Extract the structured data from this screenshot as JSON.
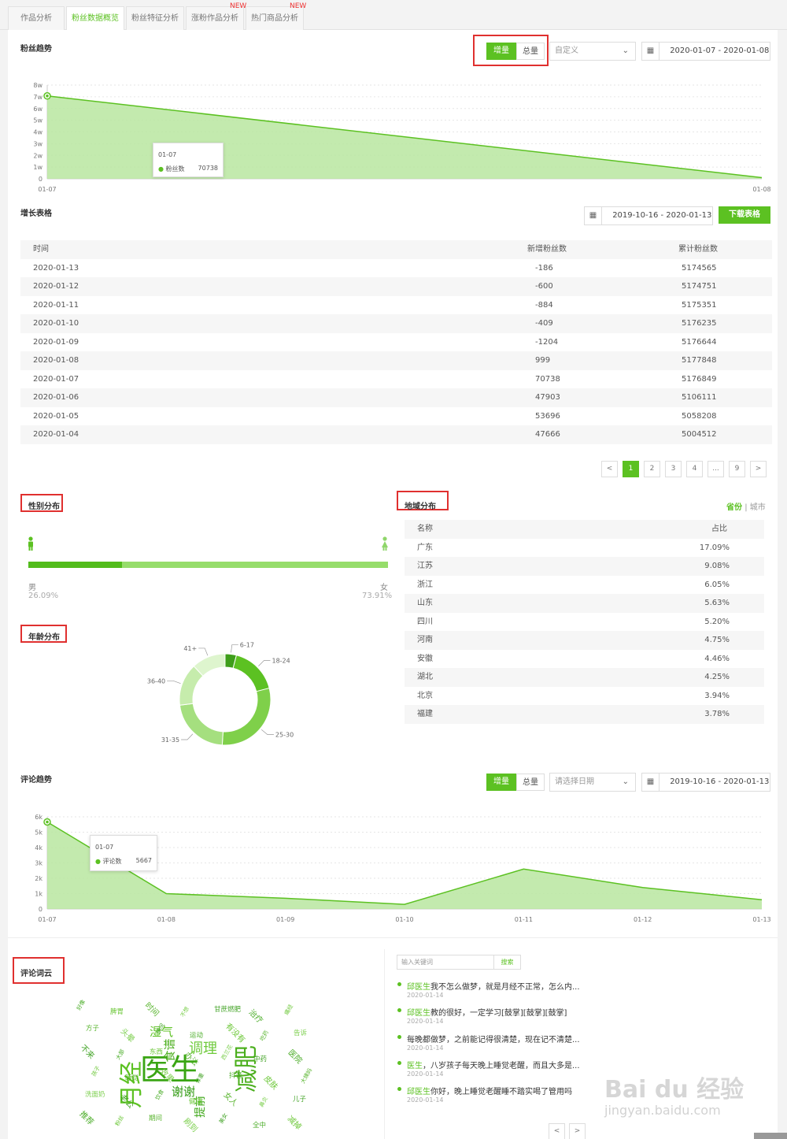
{
  "tabs": [
    {
      "label": "作品分析",
      "active": false
    },
    {
      "label": "粉丝数据概览",
      "active": true
    },
    {
      "label": "粉丝特征分析",
      "active": false
    },
    {
      "label": "涨粉作品分析",
      "active": false,
      "badge": "NEW"
    },
    {
      "label": "热门商品分析",
      "active": false,
      "badge": "NEW"
    }
  ],
  "fans_trend": {
    "title": "粉丝趋势",
    "seg_on": "增量",
    "seg_off": "总量",
    "select": "自定义",
    "date_range": "2020-01-07 - 2020-01-08",
    "tooltip": {
      "date": "01-07",
      "label": "粉丝数",
      "value": "70738"
    }
  },
  "growth_table": {
    "title": "增长表格",
    "date_range": "2019-10-16 - 2020-01-13",
    "download": "下载表格",
    "headers": [
      "时间",
      "新增粉丝数",
      "累计粉丝数"
    ],
    "rows": [
      [
        "2020-01-13",
        "-186",
        "5174565"
      ],
      [
        "2020-01-12",
        "-600",
        "5174751"
      ],
      [
        "2020-01-11",
        "-884",
        "5175351"
      ],
      [
        "2020-01-10",
        "-409",
        "5176235"
      ],
      [
        "2020-01-09",
        "-1204",
        "5176644"
      ],
      [
        "2020-01-08",
        "999",
        "5177848"
      ],
      [
        "2020-01-07",
        "70738",
        "5176849"
      ],
      [
        "2020-01-06",
        "47903",
        "5106111"
      ],
      [
        "2020-01-05",
        "53696",
        "5058208"
      ],
      [
        "2020-01-04",
        "47666",
        "5004512"
      ]
    ],
    "pages": [
      "<",
      "1",
      "2",
      "3",
      "4",
      "...",
      "9",
      ">"
    ]
  },
  "gender": {
    "title": "性别分布",
    "male_label": "男",
    "male_pct": "26.09%",
    "female_label": "女",
    "female_pct": "73.91%",
    "male_fraction": 0.2609
  },
  "age": {
    "title": "年龄分布",
    "labels": [
      "6-17",
      "18-24",
      "25-30",
      "31-35",
      "36-40",
      "41+"
    ]
  },
  "region": {
    "title": "地域分布",
    "toggle_on": "省份",
    "toggle_off": "城市",
    "headers": [
      "名称",
      "占比"
    ],
    "rows": [
      [
        "广东",
        "17.09%"
      ],
      [
        "江苏",
        "9.08%"
      ],
      [
        "浙江",
        "6.05%"
      ],
      [
        "山东",
        "5.63%"
      ],
      [
        "四川",
        "5.20%"
      ],
      [
        "河南",
        "4.75%"
      ],
      [
        "安徽",
        "4.46%"
      ],
      [
        "湖北",
        "4.25%"
      ],
      [
        "北京",
        "3.94%"
      ],
      [
        "福建",
        "3.78%"
      ]
    ]
  },
  "comment_trend": {
    "title": "评论趋势",
    "seg_on": "增量",
    "seg_off": "总量",
    "select": "请选择日期",
    "date_range": "2019-10-16 - 2020-01-13",
    "tooltip": {
      "date": "01-07",
      "label": "评论数",
      "value": "5667"
    }
  },
  "wordcloud": {
    "title": "评论词云",
    "search_placeholder": "输入关键词",
    "search_btn": "搜索",
    "words_big": [
      "医生",
      "月经",
      "减肥",
      "调理",
      "谢谢",
      "提前",
      "湿气",
      "食谱"
    ],
    "words_small": [
      "好像",
      "脾胃",
      "时间",
      "不想",
      "甘蔗燃肥",
      "治疗",
      "痛经",
      "方子",
      "头晕",
      "情况",
      "运动",
      "有没有",
      "吃药",
      "告诉",
      "不来",
      "大部",
      "东西",
      "办法",
      "西兰花",
      "中药",
      "医院",
      "孩子",
      "睡觉",
      "效果",
      "体重",
      "抖音",
      "皮肤",
      "大姨妈",
      "洗面奶",
      "老公",
      "饮食",
      "健康",
      "女人",
      "鼻炎",
      "儿子",
      "推荐",
      "粉丝",
      "期间",
      "刷到",
      "美女",
      "全中",
      "减掉"
    ],
    "pager": [
      "<",
      ">"
    ]
  },
  "comments": [
    {
      "hl": "邱医生",
      "text": "我不怎么做梦，就是月经不正常，怎么内...",
      "date": "2020-01-14"
    },
    {
      "hl": "邱医生",
      "text": "教的很好，一定学习[鼓掌][鼓掌][鼓掌]",
      "date": "2020-01-14"
    },
    {
      "hl": "",
      "text": "每晚都做梦，之前能记得很清楚，现在记不清楚...",
      "date": "2020-01-14"
    },
    {
      "hl": "医生",
      "text": "，八岁孩子每天晚上睡觉老醒，而且大多是...",
      "date": "2020-01-14"
    },
    {
      "hl": "邱医生",
      "text": "你好，晚上睡觉老醒睡不踏实喝了管用吗",
      "date": "2020-01-14"
    }
  ],
  "watermark": {
    "text": "Bai du 经验",
    "sub": "jingyan.baidu.com"
  },
  "charts": {
    "chart_data": [
      {
        "type": "area",
        "x": [
          "01-07",
          "01-08"
        ],
        "series": [
          {
            "name": "粉丝数",
            "values": [
              70738,
              999
            ]
          }
        ],
        "yticks": [
          "0",
          "1w",
          "2w",
          "3w",
          "4w",
          "5w",
          "6w",
          "7w",
          "8w"
        ],
        "ylim": [
          0,
          80000
        ]
      },
      {
        "type": "pie",
        "categories": [
          "6-17",
          "18-24",
          "25-30",
          "31-35",
          "36-40",
          "41+"
        ],
        "values": [
          4,
          17,
          30,
          22,
          15,
          12
        ]
      },
      {
        "type": "area",
        "x": [
          "01-07",
          "01-08",
          "01-09",
          "01-10",
          "01-11",
          "01-12",
          "01-13"
        ],
        "series": [
          {
            "name": "评论数",
            "values": [
              5667,
              1000,
              700,
              300,
              2600,
              1400,
              600
            ]
          }
        ],
        "yticks": [
          "0",
          "1k",
          "2k",
          "3k",
          "4k",
          "5k",
          "6k"
        ],
        "ylim": [
          0,
          6000
        ]
      }
    ]
  }
}
